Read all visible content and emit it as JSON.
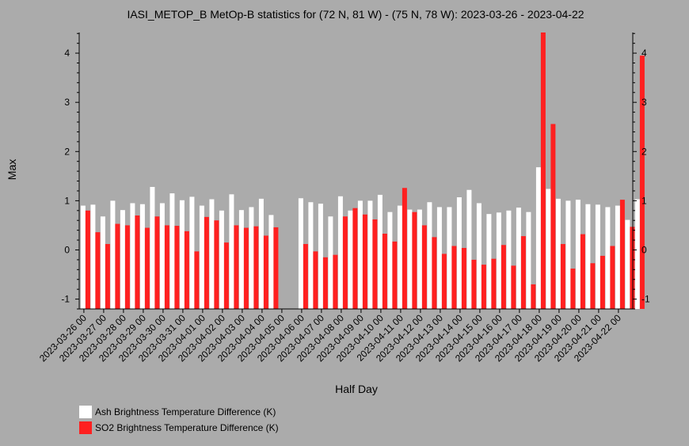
{
  "chart_data": {
    "type": "bar",
    "title": "IASI_METOP_B MetOp-B statistics for (72 N, 81 W) - (75 N, 78 W): 2023-03-26 - 2023-04-22",
    "xlabel": "Half Day",
    "ylabel": "Max",
    "ylim": [
      -1.2,
      4.42
    ],
    "yticks": [
      -1,
      0,
      1,
      2,
      3,
      4
    ],
    "grid": false,
    "legend_position": "bottom-left",
    "x_tick_labels": [
      "2023-03-26 00",
      "2023-03-27 00",
      "2023-03-28 00",
      "2023-03-29 00",
      "2023-03-30 00",
      "2023-03-31 00",
      "2023-04-01 00",
      "2023-04-02 00",
      "2023-04-03 00",
      "2023-04-04 00",
      "2023-04-05 00",
      "2023-04-06 00",
      "2023-04-07 00",
      "2023-04-08 00",
      "2023-04-09 00",
      "2023-04-10 00",
      "2023-04-11 00",
      "2023-04-12 00",
      "2023-04-13 00",
      "2023-04-14 00",
      "2023-04-15 00",
      "2023-04-16 00",
      "2023-04-17 00",
      "2023-04-18 00",
      "2023-04-19 00",
      "2023-04-20 00",
      "2023-04-21 00",
      "2023-04-22 00"
    ],
    "series": [
      {
        "name": "Ash Brightness Temperature Difference (K)",
        "color": "#ffffff",
        "values": [
          0.9,
          0.92,
          0.68,
          1.0,
          0.81,
          0.95,
          0.93,
          1.28,
          0.95,
          1.15,
          1.01,
          1.08,
          0.9,
          1.03,
          0.8,
          1.13,
          0.81,
          0.87,
          1.04,
          0.71,
          null,
          null,
          1.05,
          0.97,
          0.94,
          0.68,
          1.09,
          0.8,
          1.0,
          1.0,
          1.12,
          0.77,
          0.9,
          0.82,
          0.82,
          0.97,
          0.87,
          0.87,
          1.07,
          1.22,
          0.95,
          0.73,
          0.76,
          0.8,
          0.86,
          0.77,
          1.68,
          1.24,
          1.04,
          1.0,
          1.02,
          0.93,
          0.92,
          0.87,
          0.9,
          0.61,
          1.03
        ]
      },
      {
        "name": "SO2 Brightness Temperature Difference (K)",
        "color": "#ff2020",
        "values": [
          0.8,
          0.36,
          0.12,
          0.53,
          0.5,
          0.7,
          0.45,
          0.68,
          0.5,
          0.49,
          0.38,
          -0.03,
          0.67,
          0.6,
          0.15,
          0.5,
          0.45,
          0.48,
          0.29,
          0.46,
          null,
          null,
          0.12,
          -0.03,
          -0.15,
          -0.1,
          0.68,
          0.85,
          0.72,
          0.62,
          0.33,
          0.17,
          1.26,
          0.77,
          0.5,
          0.26,
          -0.08,
          0.08,
          0.04,
          -0.2,
          -0.3,
          -0.18,
          0.1,
          -0.32,
          0.28,
          -0.7,
          4.42,
          2.56,
          0.12,
          -0.38,
          0.32,
          -0.27,
          -0.12,
          0.08,
          1.02,
          0.47,
          3.95
        ]
      }
    ]
  }
}
